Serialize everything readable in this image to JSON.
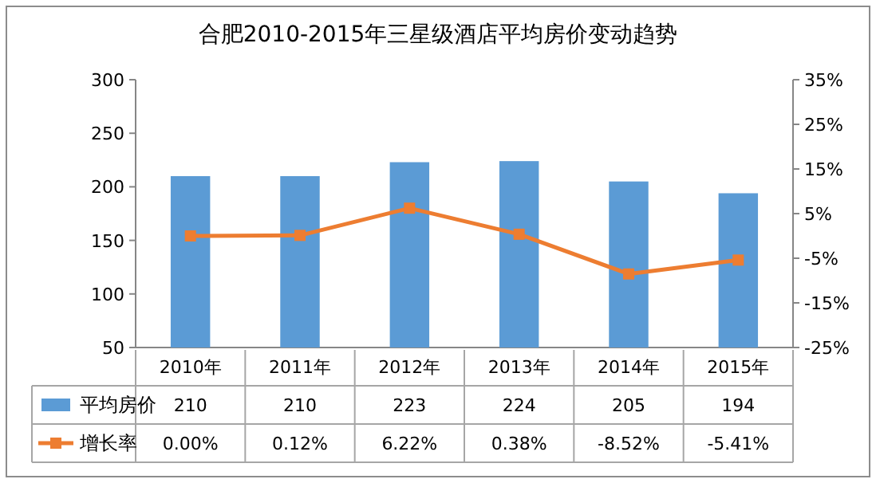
{
  "chart_data": {
    "type": "bar",
    "title": "合肥2010-2015年三星级酒店平均房价变动趋势",
    "categories": [
      "2010年",
      "2011年",
      "2012年",
      "2013年",
      "2014年",
      "2015年"
    ],
    "series": [
      {
        "name": "平均房价",
        "color": "#5b9bd5",
        "values": [
          210,
          210,
          223,
          224,
          205,
          194
        ],
        "value_labels": [
          "210",
          "210",
          "223",
          "224",
          "205",
          "194"
        ]
      },
      {
        "name": "增长率",
        "type": "line",
        "axis": "y2",
        "color": "#ed7d31",
        "marker": "square",
        "values": [
          0.0,
          0.12,
          6.22,
          0.38,
          -8.52,
          -5.41
        ],
        "value_labels": [
          "0.00%",
          "0.12%",
          "6.22%",
          "0.38%",
          "-8.52%",
          "-5.41%"
        ]
      }
    ],
    "ylim": [
      50,
      300
    ],
    "yticks": [
      50,
      100,
      150,
      200,
      250,
      300
    ],
    "y2lim": [
      -25,
      35
    ],
    "y2ticks": [
      {
        "value": -25,
        "label": "-25%"
      },
      {
        "value": -15,
        "label": "-15%"
      },
      {
        "value": -5,
        "label": "-5%"
      },
      {
        "value": 5,
        "label": "5%"
      },
      {
        "value": 15,
        "label": "15%"
      },
      {
        "value": 25,
        "label": "25%"
      },
      {
        "value": 35,
        "label": "35%"
      }
    ],
    "legend": "bottom"
  }
}
